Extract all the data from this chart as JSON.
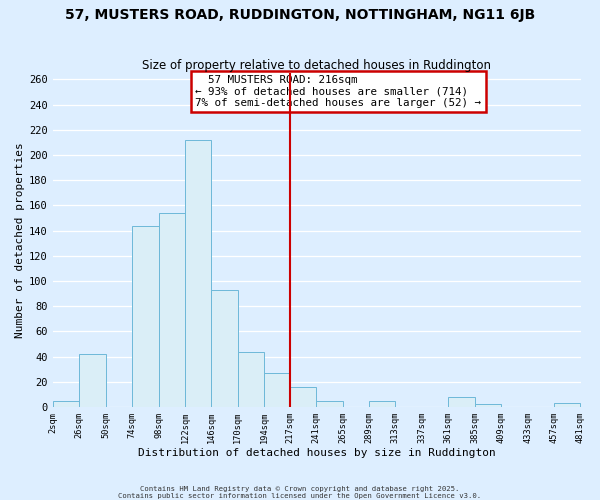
{
  "title": "57, MUSTERS ROAD, RUDDINGTON, NOTTINGHAM, NG11 6JB",
  "subtitle": "Size of property relative to detached houses in Ruddington",
  "xlabel": "Distribution of detached houses by size in Ruddington",
  "ylabel": "Number of detached properties",
  "bin_edges": [
    2,
    26,
    50,
    74,
    98,
    122,
    146,
    170,
    194,
    217,
    241,
    265,
    289,
    313,
    337,
    361,
    385,
    409,
    433,
    457,
    481
  ],
  "bar_heights": [
    5,
    42,
    0,
    144,
    154,
    212,
    93,
    44,
    27,
    16,
    5,
    0,
    5,
    0,
    0,
    8,
    2,
    0,
    0,
    3
  ],
  "bar_color": "#daeef7",
  "bar_edge_color": "#6db8d8",
  "ref_line_x": 217,
  "ref_line_color": "#cc0000",
  "annotation_title": "57 MUSTERS ROAD: 216sqm",
  "annotation_line1": "← 93% of detached houses are smaller (714)",
  "annotation_line2": "7% of semi-detached houses are larger (52) →",
  "annotation_box_facecolor": "white",
  "annotation_box_edgecolor": "#cc0000",
  "ylim": [
    0,
    265
  ],
  "yticks": [
    0,
    20,
    40,
    60,
    80,
    100,
    120,
    140,
    160,
    180,
    200,
    220,
    240,
    260
  ],
  "tick_labels": [
    "2sqm",
    "26sqm",
    "50sqm",
    "74sqm",
    "98sqm",
    "122sqm",
    "146sqm",
    "170sqm",
    "194sqm",
    "217sqm",
    "241sqm",
    "265sqm",
    "289sqm",
    "313sqm",
    "337sqm",
    "361sqm",
    "385sqm",
    "409sqm",
    "433sqm",
    "457sqm",
    "481sqm"
  ],
  "bg_color": "#ddeeff",
  "grid_color": "white",
  "footer1": "Contains HM Land Registry data © Crown copyright and database right 2025.",
  "footer2": "Contains public sector information licensed under the Open Government Licence v3.0."
}
